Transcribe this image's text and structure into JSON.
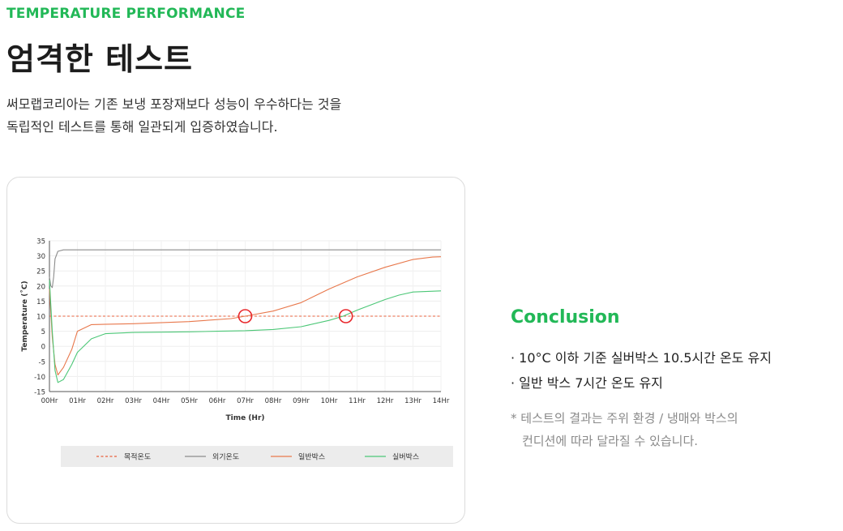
{
  "header": {
    "eyebrow": "TEMPERATURE PERFORMANCE",
    "title": "엄격한 테스트",
    "description": [
      "써모랩코리아는 기존 보냉 포장재보다 성능이 우수하다는 것을",
      "독립적인 테스트를 통해 일관되게 입증하였습니다."
    ]
  },
  "chart_data": {
    "type": "line",
    "xlabel": "Time (Hr)",
    "ylabel": "Temperature (˚C)",
    "categories": [
      "00Hr",
      "01Hr",
      "02Hr",
      "03Hr",
      "04Hr",
      "05Hr",
      "06Hr",
      "07Hr",
      "08Hr",
      "09Hr",
      "10Hr",
      "11Hr",
      "12Hr",
      "13Hr",
      "14Hr"
    ],
    "xlim": [
      0,
      14
    ],
    "ylim": [
      -15,
      35
    ],
    "yticks": [
      35,
      30,
      25,
      20,
      15,
      10,
      5,
      0,
      -5,
      -10,
      -15
    ],
    "grid": true,
    "legend_position": "bottom",
    "series": [
      {
        "name": "목적온도",
        "color": "#e8603c",
        "dashed": true,
        "x": [
          0,
          14
        ],
        "y": [
          10,
          10
        ]
      },
      {
        "name": "외기온도",
        "color": "#8c8c8c",
        "dashed": false,
        "x": [
          0,
          0.05,
          0.1,
          0.15,
          0.2,
          0.3,
          0.5,
          1,
          14
        ],
        "y": [
          23,
          20,
          19.5,
          23,
          29,
          31.5,
          32,
          32,
          32
        ]
      },
      {
        "name": "일반박스",
        "color": "#e8784c",
        "dashed": false,
        "x": [
          0,
          0.1,
          0.2,
          0.3,
          0.5,
          0.8,
          1,
          1.5,
          3,
          5,
          6.5,
          7,
          8,
          9,
          10,
          11,
          12,
          13,
          13.7,
          14
        ],
        "y": [
          19,
          3,
          -6,
          -9.5,
          -7,
          -1,
          5,
          7.2,
          7.5,
          8.2,
          9.2,
          10,
          11.7,
          14.5,
          19,
          23,
          26.2,
          28.8,
          29.6,
          29.7
        ]
      },
      {
        "name": "실버박스",
        "color": "#4cc777",
        "dashed": false,
        "x": [
          0,
          0.1,
          0.2,
          0.3,
          0.5,
          0.8,
          1,
          1.5,
          2,
          3,
          5,
          6,
          7,
          8,
          9,
          10,
          10.5,
          11,
          12,
          12.5,
          13,
          14
        ],
        "y": [
          22,
          5,
          -8,
          -12,
          -11,
          -6,
          -2,
          2.5,
          4.2,
          4.6,
          4.8,
          5,
          5.2,
          5.6,
          6.5,
          8.6,
          10,
          12,
          15.5,
          17,
          18,
          18.4
        ]
      }
    ],
    "markers": [
      {
        "x": 7,
        "y": 10
      },
      {
        "x": 10.6,
        "y": 10
      }
    ]
  },
  "conclusion": {
    "title": "Conclusion",
    "bullets": [
      "· 10°C 이하 기준 실버박스 10.5시간 온도 유지",
      "· 일반 박스 7시간 온도 유지"
    ],
    "note": [
      "*  테스트의 결과는 주위 환경 / 냉매와 박스의",
      "컨디션에 따라 달라질 수 있습니다."
    ]
  }
}
